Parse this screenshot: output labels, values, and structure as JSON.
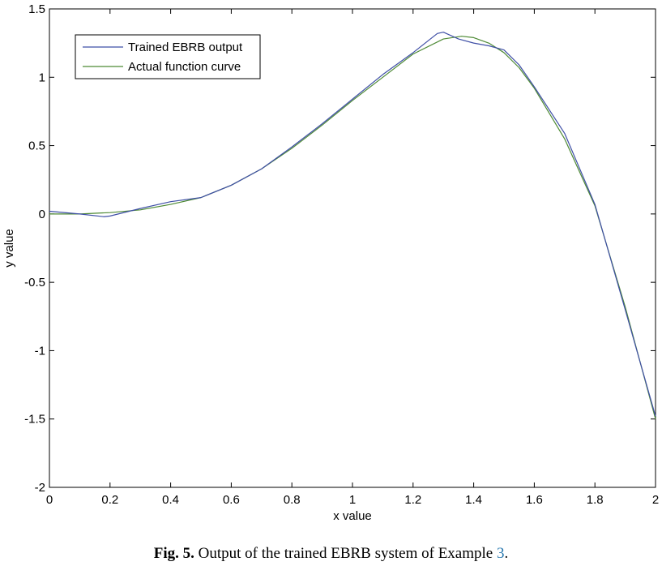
{
  "chart_data": {
    "type": "line",
    "xlabel": "x value",
    "ylabel": "y value",
    "xlim": [
      0,
      2
    ],
    "ylim": [
      -2,
      1.5
    ],
    "xticks": [
      0,
      0.2,
      0.4,
      0.6,
      0.8,
      1,
      1.2,
      1.4,
      1.6,
      1.8,
      2
    ],
    "xtick_labels": [
      "0",
      "0.2",
      "0.4",
      "0.6",
      "0.8",
      "1",
      "1.2",
      "1.4",
      "1.6",
      "1.8",
      "2"
    ],
    "yticks": [
      -2,
      -1.5,
      -1,
      -0.5,
      0,
      0.5,
      1,
      1.5
    ],
    "ytick_labels": [
      "-2",
      "-1.5",
      "-1",
      "-0.5",
      "0",
      "0.5",
      "1",
      "1.5"
    ],
    "grid": false,
    "legend_position": "top-left",
    "series": [
      {
        "name": "Trained EBRB output",
        "color": "#3f4fa6",
        "x": [
          0,
          0.1,
          0.18,
          0.2,
          0.3,
          0.4,
          0.5,
          0.6,
          0.7,
          0.8,
          0.9,
          1.0,
          1.1,
          1.2,
          1.28,
          1.3,
          1.35,
          1.4,
          1.45,
          1.5,
          1.55,
          1.6,
          1.7,
          1.8,
          1.9,
          2.0
        ],
        "y": [
          0.02,
          0.0,
          -0.02,
          -0.015,
          0.04,
          0.09,
          0.12,
          0.21,
          0.33,
          0.49,
          0.66,
          0.84,
          1.02,
          1.18,
          1.32,
          1.33,
          1.28,
          1.25,
          1.23,
          1.2,
          1.09,
          0.93,
          0.59,
          0.07,
          -0.7,
          -1.48
        ]
      },
      {
        "name": "Actual function curve",
        "color": "#4e8a35",
        "x": [
          0,
          0.1,
          0.2,
          0.3,
          0.4,
          0.5,
          0.6,
          0.7,
          0.8,
          0.9,
          1.0,
          1.1,
          1.2,
          1.3,
          1.36,
          1.4,
          1.45,
          1.5,
          1.55,
          1.6,
          1.7,
          1.8,
          1.9,
          2.0
        ],
        "y": [
          0.0,
          0.0,
          0.01,
          0.03,
          0.07,
          0.12,
          0.21,
          0.33,
          0.48,
          0.65,
          0.83,
          1.0,
          1.17,
          1.28,
          1.3,
          1.29,
          1.25,
          1.18,
          1.07,
          0.92,
          0.55,
          0.06,
          -0.68,
          -1.5
        ]
      }
    ]
  },
  "caption": {
    "label": "Fig. 5.",
    "text": " Output of the trained EBRB system of Example ",
    "ref": "3",
    "end": "."
  }
}
